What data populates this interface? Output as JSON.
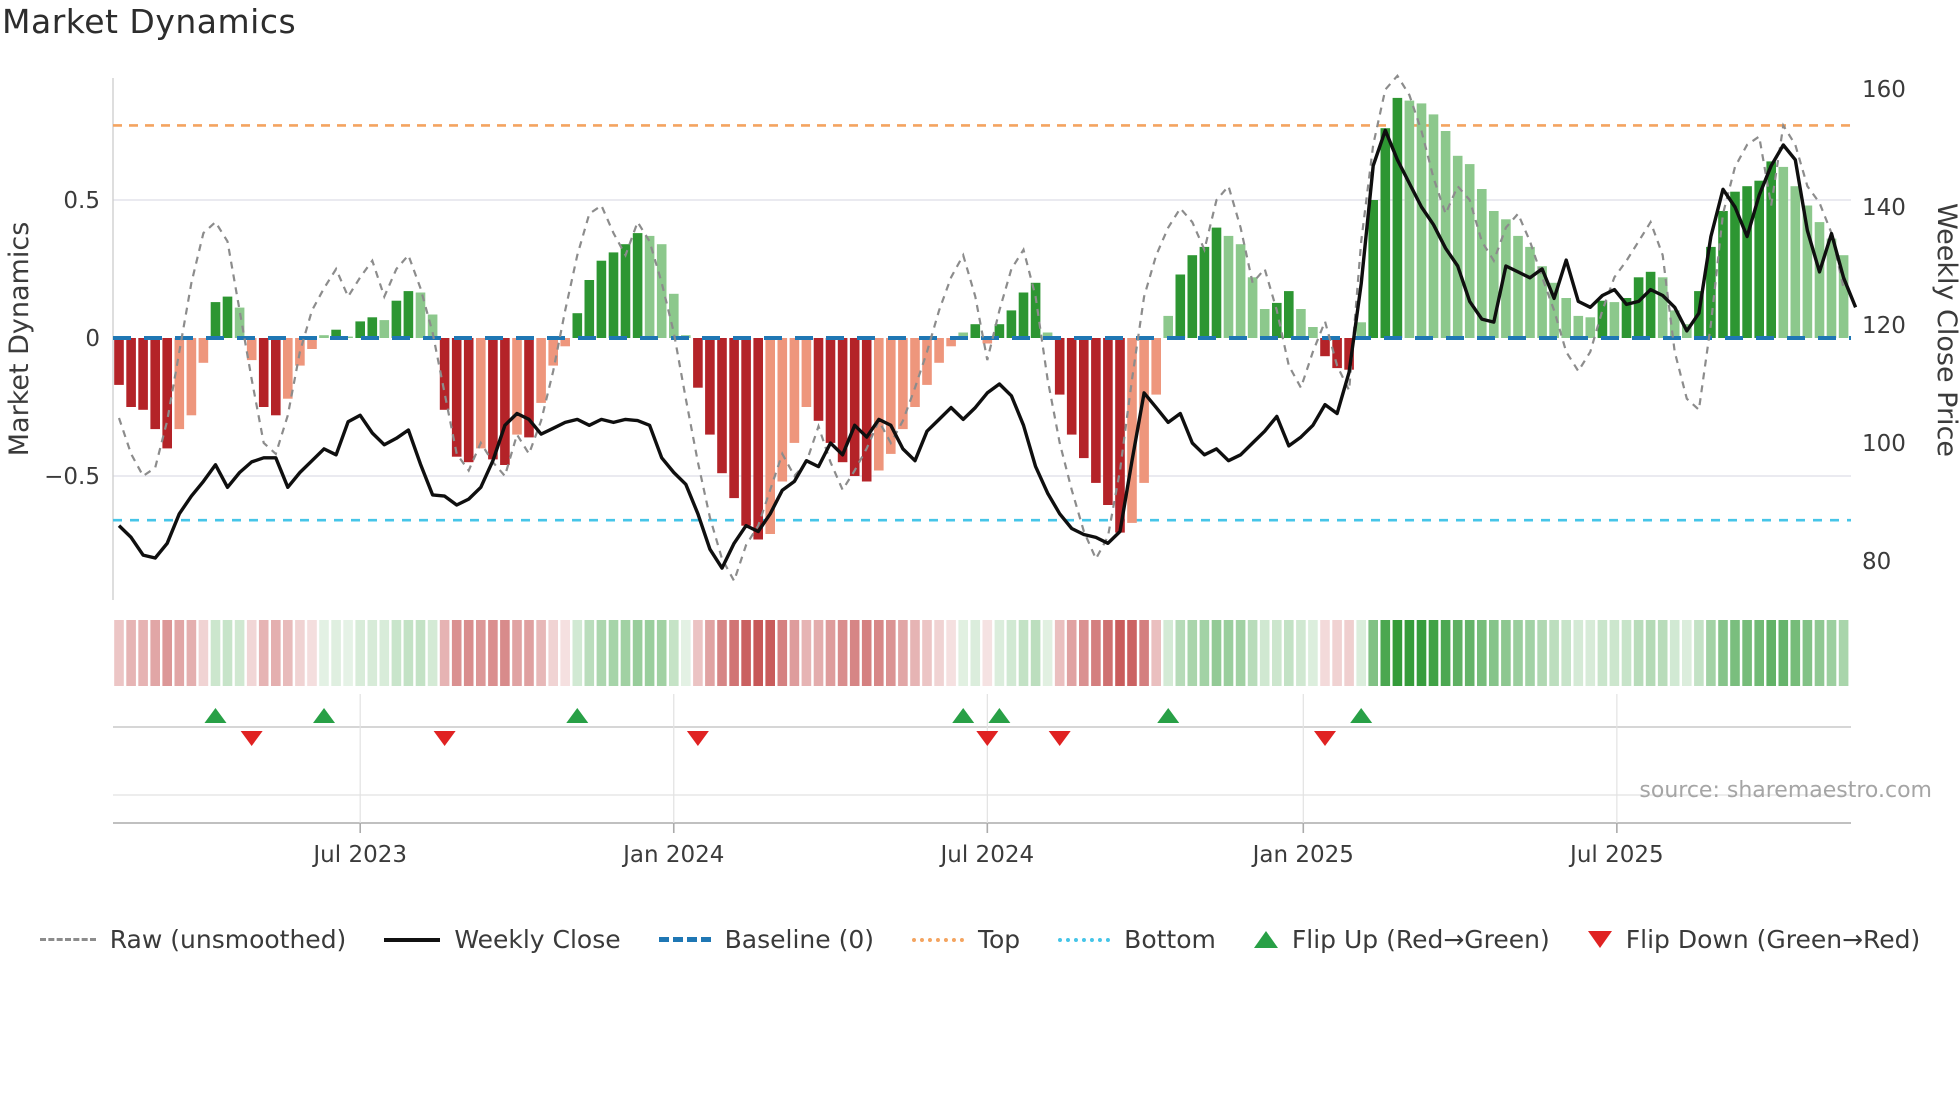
{
  "title": "Market Dynamics",
  "source": "source: sharemaestro.com",
  "axes": {
    "left": {
      "label": "Market Dynamics",
      "ticks": [
        {
          "value": 0.5,
          "label": "0.5"
        },
        {
          "value": 0.0,
          "label": "0"
        },
        {
          "value": -0.5,
          "label": "−0.5"
        }
      ]
    },
    "right": {
      "label": "Weekly Close Price",
      "ticks": [
        {
          "value": 160,
          "label": "160"
        },
        {
          "value": 140,
          "label": "140"
        },
        {
          "value": 120,
          "label": "120"
        },
        {
          "value": 100,
          "label": "100"
        },
        {
          "value": 80,
          "label": "80"
        }
      ]
    },
    "x": {
      "ticks": [
        {
          "week": 20,
          "label": "Jul 2023"
        },
        {
          "week": 46,
          "label": "Jan 2024"
        },
        {
          "week": 72,
          "label": "Jul 2024"
        },
        {
          "week": 98.2,
          "label": "Jan 2025"
        },
        {
          "week": 124.2,
          "label": "Jul 2025"
        }
      ]
    }
  },
  "legend": {
    "items": [
      {
        "label": "Raw (unsmoothed)",
        "swatch": "raw-dashed-gray"
      },
      {
        "label": "Weekly Close",
        "swatch": "solid-black"
      },
      {
        "label": "Baseline (0)",
        "swatch": "dashed-blue"
      },
      {
        "label": "Top",
        "swatch": "dotted-orange"
      },
      {
        "label": "Bottom",
        "swatch": "dotted-cyan"
      },
      {
        "label": "Flip Up (Red→Green)",
        "swatch": "green-up-triangle"
      },
      {
        "label": "Flip Down (Green→Red)",
        "swatch": "red-down-triangle"
      }
    ]
  },
  "colors": {
    "bar_neg_dark": "#b42328",
    "bar_neg_light": "#ee967c",
    "bar_pos_dark": "#2d9632",
    "bar_pos_light": "#8cc88c",
    "baseline_blue": "#1f77b4",
    "top_orange": "#f4a460",
    "bottom_cyan": "#46c5e8",
    "raw_gray": "#8c8c8c",
    "close_black": "#0f0f0f",
    "flip_up_green": "#28a046",
    "flip_down_red": "#e02222",
    "grid": "#e3e3ec",
    "spine": "#cfcfcf",
    "tick_text": "#3b3b3b",
    "strip_red": "#ba3030",
    "strip_green": "#28962e"
  },
  "chart_data": {
    "type": "bar+line combo with heatmap strip and flip markers",
    "x_unit": "weekly points, Feb 2023 to Nov 2025",
    "n_points": 144,
    "baseline": 0,
    "top_level": 0.77,
    "bottom_level": -0.66,
    "ylim_left": [
      -0.95,
      0.97
    ],
    "ylim_right": [
      74,
      163
    ],
    "x_tick_weeks": [
      20,
      46,
      72,
      98.2,
      124.2
    ],
    "x_tick_labels": [
      "Jul 2023",
      "Jan 2024",
      "Jul 2024",
      "Jan 2025",
      "Jul 2025"
    ],
    "flip_up_weeks": [
      8,
      17,
      38,
      70,
      73,
      87,
      103
    ],
    "flip_down_weeks": [
      11,
      27,
      48,
      72,
      78,
      100
    ],
    "series": [
      {
        "name": "Market Dynamics bars",
        "type": "bar",
        "axis": "left",
        "values": [
          -0.17,
          -0.25,
          -0.26,
          -0.33,
          -0.4,
          -0.33,
          -0.28,
          -0.09,
          0.13,
          0.15,
          0.11,
          -0.08,
          -0.25,
          -0.28,
          -0.22,
          -0.1,
          -0.04,
          0.01,
          0.03,
          0.005,
          0.06,
          0.075,
          0.065,
          0.135,
          0.17,
          0.165,
          0.085,
          -0.26,
          -0.43,
          -0.45,
          -0.4,
          -0.44,
          -0.46,
          -0.35,
          -0.36,
          -0.235,
          -0.1,
          -0.03,
          0.09,
          0.21,
          0.28,
          0.31,
          0.34,
          0.38,
          0.37,
          0.34,
          0.16,
          0.01,
          -0.18,
          -0.35,
          -0.49,
          -0.58,
          -0.68,
          -0.73,
          -0.71,
          -0.52,
          -0.38,
          -0.25,
          -0.3,
          -0.38,
          -0.45,
          -0.5,
          -0.52,
          -0.48,
          -0.42,
          -0.33,
          -0.25,
          -0.17,
          -0.09,
          -0.03,
          0.02,
          0.05,
          -0.02,
          0.05,
          0.1,
          0.165,
          0.2,
          0.02,
          -0.205,
          -0.35,
          -0.435,
          -0.525,
          -0.605,
          -0.705,
          -0.67,
          -0.525,
          -0.205,
          0.08,
          0.23,
          0.3,
          0.33,
          0.4,
          0.37,
          0.34,
          0.22,
          0.105,
          0.127,
          0.17,
          0.105,
          0.04,
          -0.066,
          -0.109,
          -0.115,
          0.057,
          0.5,
          0.76,
          0.87,
          0.86,
          0.85,
          0.81,
          0.75,
          0.66,
          0.63,
          0.54,
          0.46,
          0.43,
          0.37,
          0.33,
          0.26,
          0.2,
          0.145,
          0.08,
          0.075,
          0.135,
          0.13,
          0.145,
          0.22,
          0.24,
          0.22,
          0.1,
          0.05,
          0.17,
          0.33,
          0.46,
          0.53,
          0.55,
          0.57,
          0.64,
          0.62,
          0.55,
          0.48,
          0.42,
          0.36,
          0.3
        ]
      },
      {
        "name": "Raw (unsmoothed)",
        "type": "line",
        "axis": "left",
        "values": [
          -0.29,
          -0.42,
          -0.5,
          -0.47,
          -0.3,
          -0.05,
          0.2,
          0.38,
          0.42,
          0.35,
          0.1,
          -0.15,
          -0.38,
          -0.42,
          -0.28,
          -0.05,
          0.1,
          0.18,
          0.25,
          0.15,
          0.22,
          0.28,
          0.15,
          0.25,
          0.3,
          0.18,
          0.02,
          -0.2,
          -0.42,
          -0.48,
          -0.38,
          -0.45,
          -0.5,
          -0.35,
          -0.42,
          -0.3,
          -0.12,
          0.1,
          0.3,
          0.45,
          0.48,
          0.38,
          0.3,
          0.42,
          0.35,
          0.2,
          0.02,
          -0.22,
          -0.45,
          -0.65,
          -0.8,
          -0.88,
          -0.75,
          -0.68,
          -0.55,
          -0.42,
          -0.5,
          -0.45,
          -0.32,
          -0.45,
          -0.55,
          -0.48,
          -0.4,
          -0.3,
          -0.38,
          -0.3,
          -0.18,
          -0.05,
          0.1,
          0.22,
          0.3,
          0.15,
          -0.08,
          0.1,
          0.25,
          0.32,
          0.15,
          -0.15,
          -0.38,
          -0.55,
          -0.7,
          -0.8,
          -0.72,
          -0.48,
          -0.15,
          0.15,
          0.3,
          0.4,
          0.47,
          0.42,
          0.32,
          0.5,
          0.55,
          0.4,
          0.2,
          0.25,
          0.1,
          -0.1,
          -0.18,
          -0.05,
          0.06,
          -0.1,
          -0.19,
          0.35,
          0.7,
          0.9,
          0.95,
          0.88,
          0.75,
          0.58,
          0.45,
          0.55,
          0.5,
          0.35,
          0.28,
          0.4,
          0.45,
          0.35,
          0.22,
          0.1,
          -0.05,
          -0.12,
          -0.05,
          0.1,
          0.22,
          0.28,
          0.35,
          0.42,
          0.3,
          -0.05,
          -0.22,
          -0.26,
          0.05,
          0.45,
          0.62,
          0.7,
          0.73,
          0.48,
          0.77,
          0.7,
          0.55,
          0.49,
          0.38,
          0.18
        ]
      },
      {
        "name": "Weekly Close",
        "type": "line",
        "axis": "right",
        "values": [
          86,
          84,
          81,
          80.5,
          83,
          88,
          91,
          93.5,
          96.3,
          92.5,
          95,
          96.8,
          97.5,
          97.5,
          92.5,
          95,
          97,
          99,
          98,
          103.6,
          104.7,
          101.7,
          99.7,
          100.8,
          102.2,
          96.4,
          91.2,
          91,
          89.5,
          90.5,
          92.5,
          97,
          103,
          105,
          104,
          101.5,
          102.5,
          103.5,
          104,
          103,
          104,
          103.5,
          104,
          103.8,
          103,
          97.5,
          95,
          93,
          88,
          82,
          78.8,
          83,
          86,
          85,
          88,
          92,
          93.5,
          97,
          96,
          100,
          98,
          103,
          101,
          104,
          103,
          99,
          97,
          102,
          104,
          106,
          104,
          106,
          108.5,
          110,
          108,
          103,
          96,
          91.5,
          88,
          85.5,
          84.5,
          84,
          83,
          85,
          97,
          108.5,
          106,
          103.5,
          105,
          100,
          98,
          99,
          97,
          98,
          100,
          102,
          104.5,
          99.5,
          101,
          103,
          106.5,
          105,
          112,
          127,
          147,
          153,
          148,
          144,
          140,
          137,
          133,
          130,
          124,
          121,
          120.5,
          130,
          129,
          128,
          129.5,
          124.5,
          131,
          124,
          123,
          125,
          126,
          123.5,
          124,
          126,
          125,
          123,
          119,
          122,
          135,
          143,
          140,
          135,
          142,
          147,
          150.5,
          148,
          136,
          129,
          135.5,
          128,
          123
        ]
      }
    ]
  }
}
